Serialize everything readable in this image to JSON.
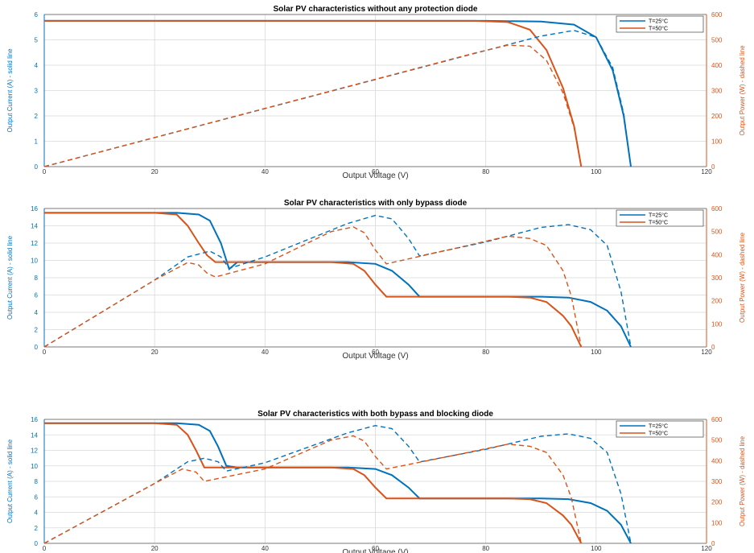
{
  "colors": {
    "t25": "#0072BD",
    "t50": "#D95319",
    "grid": "#d9d9d9",
    "axis": "#555555"
  },
  "chart_data": [
    {
      "type": "line",
      "title": "Solar PV characteristics without any protection diode",
      "xlabel": "Output Voltage (V)",
      "ylabel_left": "Output Current (A) - solid line",
      "ylabel_right": "Output Power (W) - dashed line",
      "xlim": [
        0,
        120
      ],
      "ylim_left": [
        0,
        6
      ],
      "ylim_right": [
        0,
        600
      ],
      "xticks": [
        0,
        20,
        40,
        60,
        80,
        100,
        120
      ],
      "yticks_left": [
        0,
        1,
        2,
        3,
        4,
        5,
        6
      ],
      "yticks_right": [
        0,
        100,
        200,
        300,
        400,
        500,
        600
      ],
      "grid": true,
      "legend": "top-right",
      "legend_entries": [
        "T=25°C",
        "T=50°C"
      ],
      "series": [
        {
          "name": "T=25°C",
          "axis": "left",
          "style": "solid",
          "color": "#0072BD",
          "points": [
            [
              0,
              5.75
            ],
            [
              80,
              5.75
            ],
            [
              90,
              5.72
            ],
            [
              96,
              5.6
            ],
            [
              100,
              5.1
            ],
            [
              103,
              3.8
            ],
            [
              105,
              2.0
            ],
            [
              106.3,
              0
            ]
          ]
        },
        {
          "name": "T=50°C",
          "axis": "left",
          "style": "solid",
          "color": "#D95319",
          "points": [
            [
              0,
              5.75
            ],
            [
              78,
              5.75
            ],
            [
              84,
              5.7
            ],
            [
              88,
              5.4
            ],
            [
              91,
              4.6
            ],
            [
              94,
              3.1
            ],
            [
              96,
              1.6
            ],
            [
              97.3,
              0
            ]
          ]
        },
        {
          "name": "T=25°C",
          "axis": "right",
          "style": "dashed",
          "color": "#0072BD",
          "points": [
            [
              0,
              0
            ],
            [
              80,
              458
            ],
            [
              90,
              515
            ],
            [
              96,
              537
            ],
            [
              100,
              510
            ],
            [
              103,
              391
            ],
            [
              105,
              210
            ],
            [
              106.3,
              0
            ]
          ]
        },
        {
          "name": "T=50°C",
          "axis": "right",
          "style": "dashed",
          "color": "#D95319",
          "points": [
            [
              0,
              0
            ],
            [
              78,
              448
            ],
            [
              84,
              479
            ],
            [
              88,
              475
            ],
            [
              91,
              419
            ],
            [
              94,
              291
            ],
            [
              96,
              154
            ],
            [
              97.3,
              0
            ]
          ]
        }
      ]
    },
    {
      "type": "line",
      "title": "Solar PV characteristics with only bypass diode",
      "xlabel": "Output Voltage (V)",
      "ylabel_left": "Output Current (A) - solid line",
      "ylabel_right": "Output Power (W) - dashed line",
      "xlim": [
        0,
        120
      ],
      "ylim_left": [
        0,
        16
      ],
      "ylim_right": [
        0,
        600
      ],
      "xticks": [
        0,
        20,
        40,
        60,
        80,
        100,
        120
      ],
      "yticks_left": [
        0,
        2,
        4,
        6,
        8,
        10,
        12,
        14,
        16
      ],
      "yticks_right": [
        0,
        100,
        200,
        300,
        400,
        500,
        600
      ],
      "grid": true,
      "legend": "top-right",
      "legend_entries": [
        "T=25°C",
        "T=50°C"
      ],
      "series": [
        {
          "name": "T=25°C",
          "axis": "left",
          "style": "solid",
          "color": "#0072BD",
          "points": [
            [
              0,
              15.5
            ],
            [
              24,
              15.5
            ],
            [
              28,
              15.3
            ],
            [
              30,
              14.6
            ],
            [
              32,
              12
            ],
            [
              33.5,
              9.0
            ],
            [
              35,
              9.8
            ],
            [
              55,
              9.8
            ],
            [
              60,
              9.6
            ],
            [
              63,
              8.8
            ],
            [
              66,
              7.2
            ],
            [
              68,
              5.8
            ],
            [
              90,
              5.8
            ],
            [
              95,
              5.7
            ],
            [
              99,
              5.2
            ],
            [
              102,
              4.2
            ],
            [
              104.5,
              2.4
            ],
            [
              106.3,
              0
            ]
          ]
        },
        {
          "name": "T=50°C",
          "axis": "left",
          "style": "solid",
          "color": "#D95319",
          "points": [
            [
              0,
              15.5
            ],
            [
              20,
              15.5
            ],
            [
              24,
              15.3
            ],
            [
              26,
              14.0
            ],
            [
              28,
              12
            ],
            [
              29.5,
              10.6
            ],
            [
              31,
              9.8
            ],
            [
              52,
              9.8
            ],
            [
              56,
              9.6
            ],
            [
              58,
              8.8
            ],
            [
              60,
              7.2
            ],
            [
              62,
              5.8
            ],
            [
              84,
              5.8
            ],
            [
              88,
              5.7
            ],
            [
              91,
              5.2
            ],
            [
              94,
              3.6
            ],
            [
              95.5,
              2.4
            ],
            [
              97.3,
              0
            ]
          ]
        },
        {
          "name": "T=25°C",
          "axis": "right",
          "style": "dashed",
          "color": "#0072BD",
          "points": [
            [
              0,
              0
            ],
            [
              20,
              290
            ],
            [
              26,
              390
            ],
            [
              30,
              415
            ],
            [
              32,
              390
            ],
            [
              33.5,
              340
            ],
            [
              40,
              390
            ],
            [
              55,
              535
            ],
            [
              60,
              570
            ],
            [
              63,
              555
            ],
            [
              66,
              470
            ],
            [
              68,
              394
            ],
            [
              80,
              455
            ],
            [
              90,
              518
            ],
            [
              95,
              530
            ],
            [
              99,
              508
            ],
            [
              102,
              440
            ],
            [
              104.5,
              240
            ],
            [
              106.3,
              0
            ]
          ]
        },
        {
          "name": "T=50°C",
          "axis": "right",
          "style": "dashed",
          "color": "#D95319",
          "points": [
            [
              0,
              0
            ],
            [
              20,
              290
            ],
            [
              26,
              366
            ],
            [
              28,
              355
            ],
            [
              29.5,
              320
            ],
            [
              31,
              303
            ],
            [
              40,
              360
            ],
            [
              52,
              500
            ],
            [
              56,
              520
            ],
            [
              58,
              495
            ],
            [
              60,
              420
            ],
            [
              62,
              360
            ],
            [
              75,
              430
            ],
            [
              84,
              480
            ],
            [
              88,
              470
            ],
            [
              91,
              440
            ],
            [
              94,
              330
            ],
            [
              95.5,
              220
            ],
            [
              97.3,
              0
            ]
          ]
        }
      ]
    },
    {
      "type": "line",
      "title": "Solar PV characteristics with both bypass and blocking diode",
      "xlabel": "Output Voltage (V)",
      "ylabel_left": "Output Current (A) - solid line",
      "ylabel_right": "Output Power (W) - dashed line",
      "xlim": [
        0,
        120
      ],
      "ylim_left": [
        0,
        16
      ],
      "ylim_right": [
        0,
        600
      ],
      "xticks": [
        0,
        20,
        40,
        60,
        80,
        100,
        120
      ],
      "yticks_left": [
        0,
        2,
        4,
        6,
        8,
        10,
        12,
        14,
        16
      ],
      "yticks_right": [
        0,
        100,
        200,
        300,
        400,
        500,
        600
      ],
      "grid": true,
      "legend": "top-right",
      "legend_entries": [
        "T=25°C",
        "T=50°C"
      ],
      "series": [
        {
          "name": "T=25°C",
          "axis": "left",
          "style": "solid",
          "color": "#0072BD",
          "points": [
            [
              0,
              15.5
            ],
            [
              24,
              15.5
            ],
            [
              28,
              15.3
            ],
            [
              30,
              14.5
            ],
            [
              31.5,
              12.5
            ],
            [
              33,
              10.0
            ],
            [
              35,
              9.8
            ],
            [
              55,
              9.8
            ],
            [
              60,
              9.6
            ],
            [
              63,
              8.8
            ],
            [
              66,
              7.2
            ],
            [
              68,
              5.8
            ],
            [
              90,
              5.8
            ],
            [
              95,
              5.7
            ],
            [
              99,
              5.2
            ],
            [
              102,
              4.2
            ],
            [
              104.5,
              2.4
            ],
            [
              106.3,
              0
            ]
          ]
        },
        {
          "name": "T=50°C",
          "axis": "left",
          "style": "solid",
          "color": "#D95319",
          "points": [
            [
              0,
              15.5
            ],
            [
              20,
              15.5
            ],
            [
              24,
              15.3
            ],
            [
              26,
              14.0
            ],
            [
              27.5,
              12
            ],
            [
              29,
              9.8
            ],
            [
              52,
              9.8
            ],
            [
              56,
              9.6
            ],
            [
              58,
              8.8
            ],
            [
              60,
              7.2
            ],
            [
              62,
              5.8
            ],
            [
              84,
              5.8
            ],
            [
              88,
              5.7
            ],
            [
              91,
              5.2
            ],
            [
              94,
              3.6
            ],
            [
              95.5,
              2.4
            ],
            [
              97.3,
              0
            ]
          ]
        },
        {
          "name": "T=25°C",
          "axis": "right",
          "style": "dashed",
          "color": "#0072BD",
          "points": [
            [
              0,
              0
            ],
            [
              20,
              290
            ],
            [
              26,
              395
            ],
            [
              29,
              412
            ],
            [
              31.5,
              395
            ],
            [
              33,
              350
            ],
            [
              40,
              390
            ],
            [
              55,
              535
            ],
            [
              60,
              570
            ],
            [
              63,
              555
            ],
            [
              66,
              470
            ],
            [
              68,
              394
            ],
            [
              80,
              455
            ],
            [
              90,
              518
            ],
            [
              95,
              530
            ],
            [
              99,
              508
            ],
            [
              102,
              440
            ],
            [
              104.5,
              240
            ],
            [
              106.3,
              0
            ]
          ]
        },
        {
          "name": "T=50°C",
          "axis": "right",
          "style": "dashed",
          "color": "#D95319",
          "points": [
            [
              0,
              0
            ],
            [
              20,
              290
            ],
            [
              25,
              360
            ],
            [
              27.5,
              345
            ],
            [
              29,
              300
            ],
            [
              40,
              360
            ],
            [
              52,
              500
            ],
            [
              56,
              520
            ],
            [
              58,
              495
            ],
            [
              60,
              420
            ],
            [
              62,
              360
            ],
            [
              75,
              430
            ],
            [
              84,
              480
            ],
            [
              88,
              470
            ],
            [
              91,
              440
            ],
            [
              94,
              330
            ],
            [
              95.5,
              220
            ],
            [
              97.3,
              0
            ]
          ]
        }
      ]
    }
  ]
}
